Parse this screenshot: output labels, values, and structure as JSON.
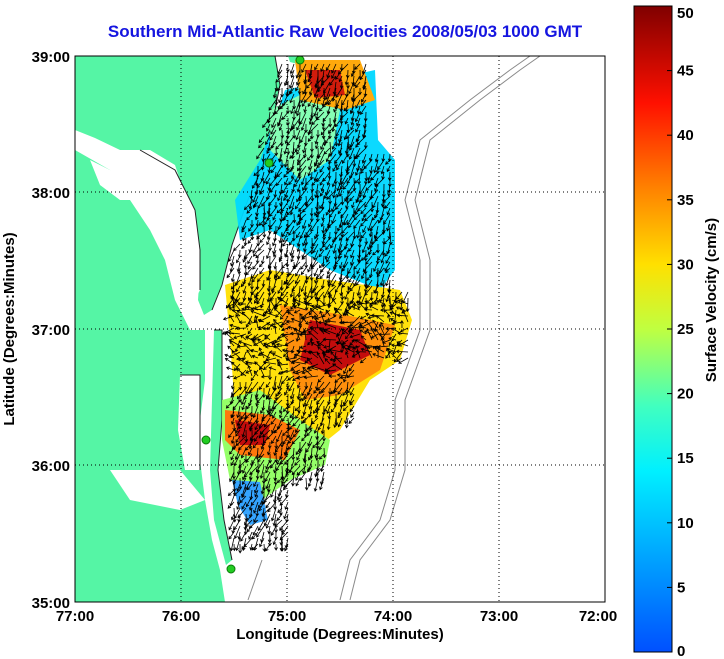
{
  "title": "Southern Mid-Atlantic Raw Velocities 2008/05/03 1000 GMT",
  "axes": {
    "xlabel": "Longitude (Degrees:Minutes)",
    "ylabel": "Latitude (Degrees:Minutes)",
    "x_ticks": [
      "77:00",
      "76:00",
      "75:00",
      "74:00",
      "73:00",
      "72:00"
    ],
    "y_ticks": [
      "39:00",
      "38:00",
      "37:00",
      "36:00",
      "35:00"
    ]
  },
  "colorbar": {
    "label": "Surface Velocity (cm/s)",
    "ticks": [
      "0",
      "5",
      "10",
      "15",
      "20",
      "25",
      "30",
      "35",
      "40",
      "45",
      "50"
    ],
    "range": [
      0,
      50
    ]
  },
  "colors": {
    "land": "#55f5a5",
    "title": "#1515e0",
    "station": "#22cc22",
    "arrows": "#000000",
    "bathymetry": "#888888"
  }
}
